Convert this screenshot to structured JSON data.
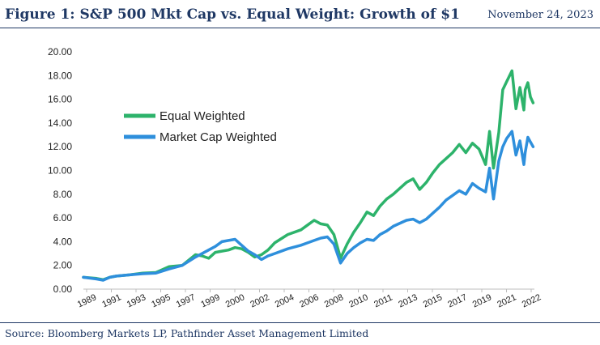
{
  "header": {
    "title": "Figure 1: S&P 500 Mkt Cap vs. Equal Weight: Growth of $1",
    "date": "November 24, 2023"
  },
  "footer": {
    "source": "Source: Bloomberg Markets LP, Pathfinder Asset Management Limited"
  },
  "chart_data": {
    "type": "line",
    "title": "",
    "xlabel": "",
    "ylabel": "",
    "xlim": [
      1988.5,
      2022.7
    ],
    "ylim": [
      0,
      20
    ],
    "y_ticks": [
      "0.00",
      "2.00",
      "4.00",
      "6.00",
      "8.00",
      "10.00",
      "12.00",
      "14.00",
      "16.00",
      "18.00",
      "20.00"
    ],
    "x_ticks": [
      "1989",
      "1991",
      "1993",
      "1995",
      "1997",
      "1999",
      "2000",
      "2002",
      "2004",
      "2006",
      "2008",
      "2010",
      "2011",
      "2013",
      "2015",
      "2017",
      "2019",
      "2021",
      "2022"
    ],
    "grid": false,
    "legend_position": "upper-left",
    "series": [
      {
        "name": "Equal Weighted",
        "color": "#2db36b",
        "x": [
          1988.5,
          1989.5,
          1990.0,
          1990.5,
          1991.0,
          1992.0,
          1993.0,
          1994.0,
          1995.0,
          1996.0,
          1997.0,
          1997.5,
          1998.0,
          1998.5,
          1999.0,
          1999.5,
          2000.0,
          2000.5,
          2001.0,
          2001.5,
          2002.0,
          2002.5,
          2003.0,
          2004.0,
          2005.0,
          2006.0,
          2006.5,
          2007.0,
          2007.5,
          2008.0,
          2008.5,
          2009.0,
          2009.5,
          2010.0,
          2010.5,
          2011.0,
          2011.5,
          2012.0,
          2013.0,
          2013.5,
          2014.0,
          2014.5,
          2015.0,
          2015.5,
          2016.0,
          2016.5,
          2017.0,
          2017.5,
          2018.0,
          2018.5,
          2019.0,
          2019.3,
          2019.6,
          2020.0,
          2020.3,
          2020.6,
          2021.0,
          2021.3,
          2021.6,
          2021.9,
          2022.0,
          2022.2,
          2022.4,
          2022.6
        ],
        "y": [
          1.0,
          0.9,
          0.8,
          1.0,
          1.1,
          1.2,
          1.35,
          1.4,
          1.9,
          2.0,
          2.9,
          2.8,
          2.6,
          3.1,
          3.2,
          3.3,
          3.5,
          3.4,
          3.1,
          2.7,
          2.9,
          3.3,
          3.9,
          4.6,
          5.0,
          5.8,
          5.5,
          5.4,
          4.6,
          2.6,
          3.8,
          4.8,
          5.6,
          6.5,
          6.2,
          7.0,
          7.6,
          8.0,
          9.0,
          9.3,
          8.4,
          9.0,
          9.8,
          10.5,
          11.0,
          11.5,
          12.2,
          11.5,
          12.3,
          11.8,
          10.5,
          13.3,
          10.2,
          13.2,
          16.8,
          17.5,
          18.4,
          15.2,
          17.0,
          15.1,
          16.8,
          17.4,
          16.2,
          15.7
        ]
      },
      {
        "name": "Market Cap Weighted",
        "color": "#2e8fdc",
        "x": [
          1988.5,
          1989.5,
          1990.0,
          1990.5,
          1991.0,
          1992.0,
          1993.0,
          1994.0,
          1995.0,
          1996.0,
          1997.0,
          1997.5,
          1998.0,
          1998.5,
          1999.0,
          1999.5,
          2000.0,
          2000.5,
          2001.0,
          2001.5,
          2002.0,
          2002.5,
          2003.0,
          2004.0,
          2005.0,
          2006.0,
          2006.5,
          2007.0,
          2007.5,
          2008.0,
          2008.5,
          2009.0,
          2009.5,
          2010.0,
          2010.5,
          2011.0,
          2011.5,
          2012.0,
          2013.0,
          2013.5,
          2014.0,
          2014.5,
          2015.0,
          2015.5,
          2016.0,
          2016.5,
          2017.0,
          2017.5,
          2018.0,
          2018.5,
          2019.0,
          2019.3,
          2019.6,
          2020.0,
          2020.3,
          2020.6,
          2021.0,
          2021.3,
          2021.6,
          2021.9,
          2022.0,
          2022.2,
          2022.4,
          2022.6
        ],
        "y": [
          1.0,
          0.85,
          0.75,
          1.0,
          1.1,
          1.2,
          1.3,
          1.35,
          1.7,
          2.0,
          2.7,
          3.0,
          3.3,
          3.6,
          4.0,
          4.1,
          4.2,
          3.7,
          3.2,
          2.9,
          2.5,
          2.8,
          3.0,
          3.4,
          3.7,
          4.1,
          4.3,
          4.4,
          3.8,
          2.2,
          3.0,
          3.5,
          3.9,
          4.2,
          4.1,
          4.6,
          4.9,
          5.3,
          5.8,
          5.9,
          5.6,
          5.9,
          6.4,
          6.9,
          7.5,
          7.9,
          8.3,
          8.0,
          8.9,
          8.5,
          8.2,
          10.2,
          7.6,
          10.8,
          12.0,
          12.7,
          13.3,
          11.3,
          12.5,
          10.5,
          11.5,
          12.8,
          12.4,
          12.0
        ]
      }
    ]
  }
}
